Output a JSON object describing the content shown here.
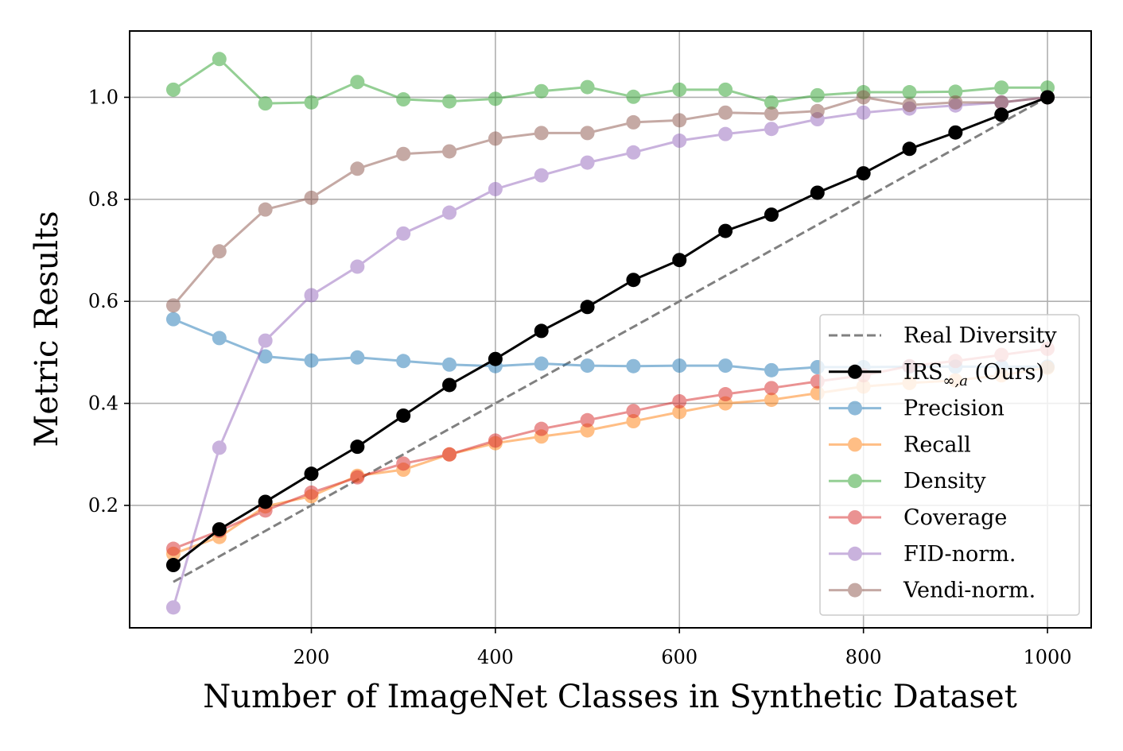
{
  "chart_data": {
    "type": "line",
    "title": "",
    "xlabel": "Number of ImageNet Classes in Synthetic Dataset",
    "ylabel": "Metric Results",
    "xlim": [
      2.5,
      1047.5
    ],
    "ylim": [
      -0.04,
      1.13
    ],
    "xticks": [
      200,
      400,
      600,
      800,
      1000
    ],
    "xtick_labels": [
      "200",
      "400",
      "600",
      "800",
      "1000"
    ],
    "yticks": [
      0.2,
      0.4,
      0.6,
      0.8,
      1.0
    ],
    "ytick_labels": [
      "0.2",
      "0.4",
      "0.6",
      "0.8",
      "1.0"
    ],
    "grid": true,
    "legend_position": "lower-right",
    "x": [
      50,
      100,
      150,
      200,
      250,
      300,
      350,
      400,
      450,
      500,
      550,
      600,
      650,
      700,
      750,
      800,
      850,
      900,
      950,
      1000
    ],
    "series": [
      {
        "name": "Real Diversity",
        "color": "#808080",
        "style": "dashed",
        "markers": false,
        "alpha": 1,
        "x": [
          50,
          1000
        ],
        "values": [
          0.05,
          1.0
        ]
      },
      {
        "name": "Precision",
        "color": "#1f77b4",
        "style": "solid",
        "markers": true,
        "alpha": 0.5,
        "values": [
          0.565,
          0.528,
          0.492,
          0.484,
          0.49,
          0.483,
          0.476,
          0.473,
          0.478,
          0.474,
          0.473,
          0.474,
          0.474,
          0.465,
          0.471,
          0.471,
          0.472,
          0.472,
          0.472,
          0.472
        ]
      },
      {
        "name": "Recall",
        "color": "#ff7f0e",
        "style": "solid",
        "markers": true,
        "alpha": 0.5,
        "values": [
          0.105,
          0.138,
          0.198,
          0.218,
          0.258,
          0.27,
          0.3,
          0.322,
          0.335,
          0.347,
          0.365,
          0.383,
          0.4,
          0.407,
          0.42,
          0.433,
          0.44,
          0.445,
          0.455,
          0.47
        ]
      },
      {
        "name": "Density",
        "color": "#2ca02c",
        "style": "solid",
        "markers": true,
        "alpha": 0.5,
        "values": [
          1.015,
          1.075,
          0.988,
          0.99,
          1.03,
          0.996,
          0.992,
          0.997,
          1.012,
          1.02,
          1.001,
          1.015,
          1.015,
          0.99,
          1.004,
          1.01,
          1.01,
          1.011,
          1.019,
          1.019
        ]
      },
      {
        "name": "Coverage",
        "color": "#d62728",
        "style": "solid",
        "markers": true,
        "alpha": 0.5,
        "values": [
          0.115,
          0.15,
          0.19,
          0.225,
          0.255,
          0.282,
          0.3,
          0.327,
          0.35,
          0.367,
          0.385,
          0.404,
          0.418,
          0.43,
          0.443,
          0.455,
          0.473,
          0.483,
          0.495,
          0.507
        ]
      },
      {
        "name": "FID-norm.",
        "color": "#9467bd",
        "style": "solid",
        "markers": true,
        "alpha": 0.5,
        "values": [
          0.0,
          0.313,
          0.523,
          0.612,
          0.668,
          0.733,
          0.774,
          0.82,
          0.847,
          0.872,
          0.892,
          0.915,
          0.928,
          0.938,
          0.957,
          0.97,
          0.978,
          0.984,
          0.99,
          1.0
        ]
      },
      {
        "name": "Vendi-norm.",
        "color": "#8c564b",
        "style": "solid",
        "markers": true,
        "alpha": 0.5,
        "values": [
          0.592,
          0.698,
          0.78,
          0.803,
          0.86,
          0.889,
          0.894,
          0.919,
          0.93,
          0.93,
          0.951,
          0.955,
          0.97,
          0.968,
          0.973,
          1.0,
          0.985,
          0.99,
          0.99,
          1.0
        ]
      },
      {
        "name": "IRS∞,α (Ours)",
        "color": "#000000",
        "style": "solid",
        "markers": true,
        "alpha": 1,
        "values": [
          0.083,
          0.153,
          0.207,
          0.262,
          0.315,
          0.376,
          0.436,
          0.487,
          0.542,
          0.589,
          0.642,
          0.681,
          0.738,
          0.77,
          0.813,
          0.851,
          0.899,
          0.931,
          0.966,
          1.0
        ]
      }
    ],
    "legend": {
      "entries": [
        {
          "series": "Real Diversity",
          "label": "Real Diversity"
        },
        {
          "series": "IRS∞,α (Ours)",
          "label_main": "IRS",
          "label_sub": "∞,a",
          "label_tail": " (Ours)"
        },
        {
          "series": "Precision",
          "label": "Precision"
        },
        {
          "series": "Recall",
          "label": "Recall"
        },
        {
          "series": "Density",
          "label": "Density"
        },
        {
          "series": "Coverage",
          "label": "Coverage"
        },
        {
          "series": "FID-norm.",
          "label": "FID-norm."
        },
        {
          "series": "Vendi-norm.",
          "label": "Vendi-norm."
        }
      ]
    }
  }
}
